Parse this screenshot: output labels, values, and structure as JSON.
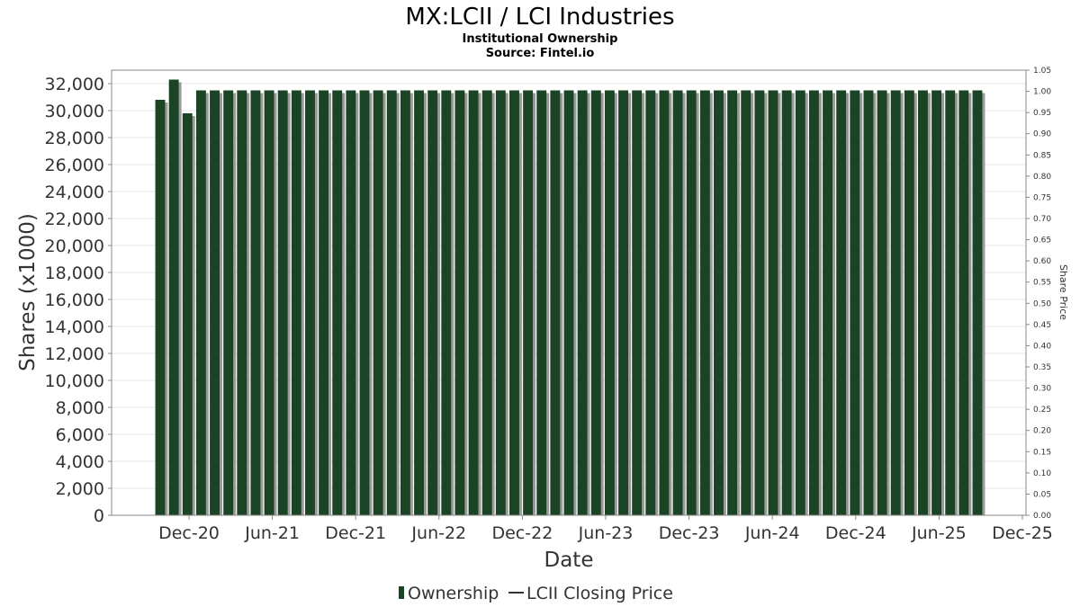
{
  "chart_data": {
    "type": "bar",
    "title": "MX:LCII / LCI Industries",
    "subtitle": "Institutional Ownership",
    "source": "Source: Fintel.io",
    "xlabel": "Date",
    "ylabel": "Shares (x1000)",
    "y2label": "Share Price",
    "ylim": [
      0,
      33000
    ],
    "y_ticks": [
      0,
      2000,
      4000,
      6000,
      8000,
      10000,
      12000,
      14000,
      16000,
      18000,
      20000,
      22000,
      24000,
      26000,
      28000,
      30000,
      32000
    ],
    "y_tick_labels": [
      "0",
      "2,000",
      "4,000",
      "6,000",
      "8,000",
      "10,000",
      "12,000",
      "14,000",
      "16,000",
      "18,000",
      "20,000",
      "22,000",
      "24,000",
      "26,000",
      "28,000",
      "30,000",
      "32,000"
    ],
    "y2lim": [
      0,
      1.05
    ],
    "y2_tick_labels": [
      "0.00",
      "0.05",
      "0.10",
      "0.15",
      "0.20",
      "0.25",
      "0.30",
      "0.35",
      "0.40",
      "0.45",
      "0.50",
      "0.55",
      "0.60",
      "0.65",
      "0.70",
      "0.75",
      "0.80",
      "0.85",
      "0.90",
      "0.95",
      "1.00",
      "1.05"
    ],
    "x_tick_labels": [
      "Dec-20",
      "Jun-21",
      "Dec-21",
      "Jun-22",
      "Dec-22",
      "Jun-23",
      "Dec-23",
      "Jun-24",
      "Dec-24",
      "Jun-25",
      "Dec-25"
    ],
    "series": [
      {
        "name": "Ownership",
        "color": "#1a4424",
        "values": [
          30800,
          32300,
          29800,
          31500,
          31500,
          31500,
          31500,
          31500,
          31500,
          31500,
          31500,
          31500,
          31500,
          31500,
          31500,
          31500,
          31500,
          31500,
          31500,
          31500,
          31500,
          31500,
          31500,
          31500,
          31500,
          31500,
          31500,
          31500,
          31500,
          31500,
          31500,
          31500,
          31500,
          31500,
          31500,
          31500,
          31500,
          31500,
          31500,
          31500,
          31500,
          31500,
          31500,
          31500,
          31500,
          31500,
          31500,
          31500,
          31500,
          31500,
          31500,
          31500,
          31500,
          31500,
          31500,
          31500,
          31500,
          31500,
          31500,
          31500,
          31500
        ]
      },
      {
        "name": "LCII Closing Price",
        "color": "#333333",
        "values": []
      }
    ],
    "legend": "bottom",
    "grid": true
  }
}
